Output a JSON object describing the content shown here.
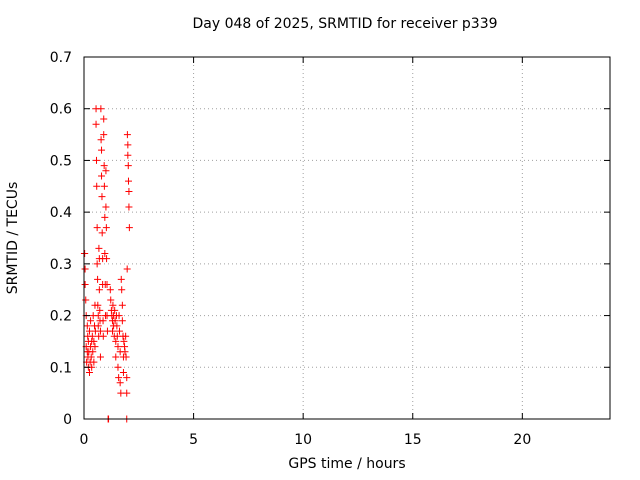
{
  "chart_data": {
    "type": "scatter",
    "title": "Day 048 of 2025, SRMTID for receiver p339",
    "xlabel": "GPS time / hours",
    "ylabel": "SRMTID / TECUs",
    "xlim": [
      0,
      24
    ],
    "ylim": [
      0,
      0.7
    ],
    "xticks": [
      0,
      5,
      10,
      15,
      20
    ],
    "yticks": [
      0,
      0.1,
      0.2,
      0.3,
      0.4,
      0.5,
      0.6,
      0.7
    ],
    "grid": true,
    "marker": "+",
    "color": "#ff0000",
    "series": [
      {
        "name": "SRMTID",
        "points": [
          [
            0.02,
            0.32
          ],
          [
            0.03,
            0.32
          ],
          [
            0.05,
            0.29
          ],
          [
            0.05,
            0.26
          ],
          [
            0.08,
            0.23
          ],
          [
            0.1,
            0.2
          ],
          [
            0.1,
            0.14
          ],
          [
            0.12,
            0.11
          ],
          [
            0.15,
            0.18
          ],
          [
            0.15,
            0.13
          ],
          [
            0.17,
            0.16
          ],
          [
            0.18,
            0.12
          ],
          [
            0.2,
            0.1
          ],
          [
            0.2,
            0.15
          ],
          [
            0.22,
            0.13
          ],
          [
            0.25,
            0.09
          ],
          [
            0.25,
            0.17
          ],
          [
            0.28,
            0.11
          ],
          [
            0.3,
            0.14
          ],
          [
            0.3,
            0.19
          ],
          [
            0.33,
            0.12
          ],
          [
            0.35,
            0.15
          ],
          [
            0.35,
            0.1
          ],
          [
            0.38,
            0.16
          ],
          [
            0.4,
            0.13
          ],
          [
            0.42,
            0.2
          ],
          [
            0.45,
            0.15
          ],
          [
            0.45,
            0.11
          ],
          [
            0.48,
            0.18
          ],
          [
            0.5,
            0.14
          ],
          [
            0.5,
            0.22
          ],
          [
            0.52,
            0.17
          ],
          [
            0.55,
            0.6
          ],
          [
            0.55,
            0.57
          ],
          [
            0.57,
            0.5
          ],
          [
            0.58,
            0.45
          ],
          [
            0.6,
            0.37
          ],
          [
            0.6,
            0.3
          ],
          [
            0.62,
            0.27
          ],
          [
            0.63,
            0.22
          ],
          [
            0.65,
            0.2
          ],
          [
            0.65,
            0.18
          ],
          [
            0.67,
            0.16
          ],
          [
            0.68,
            0.33
          ],
          [
            0.7,
            0.31
          ],
          [
            0.7,
            0.25
          ],
          [
            0.72,
            0.21
          ],
          [
            0.73,
            0.19
          ],
          [
            0.75,
            0.17
          ],
          [
            0.75,
            0.12
          ],
          [
            0.77,
            0.6
          ],
          [
            0.78,
            0.54
          ],
          [
            0.8,
            0.52
          ],
          [
            0.8,
            0.47
          ],
          [
            0.82,
            0.43
          ],
          [
            0.83,
            0.36
          ],
          [
            0.85,
            0.31
          ],
          [
            0.85,
            0.26
          ],
          [
            0.87,
            0.19
          ],
          [
            0.88,
            0.16
          ],
          [
            0.9,
            0.58
          ],
          [
            0.9,
            0.55
          ],
          [
            0.92,
            0.49
          ],
          [
            0.93,
            0.45
          ],
          [
            0.95,
            0.39
          ],
          [
            0.95,
            0.32
          ],
          [
            0.97,
            0.26
          ],
          [
            0.98,
            0.2
          ],
          [
            1.0,
            0.48
          ],
          [
            1.0,
            0.41
          ],
          [
            1.02,
            0.37
          ],
          [
            1.03,
            0.31
          ],
          [
            1.05,
            0.26
          ],
          [
            1.05,
            0.2
          ],
          [
            1.07,
            0.17
          ],
          [
            1.1,
            0.0
          ],
          [
            1.12,
            0.0
          ],
          [
            1.2,
            0.25
          ],
          [
            1.22,
            0.23
          ],
          [
            1.25,
            0.21
          ],
          [
            1.27,
            0.2
          ],
          [
            1.3,
            0.19
          ],
          [
            1.3,
            0.17
          ],
          [
            1.32,
            0.22
          ],
          [
            1.35,
            0.2
          ],
          [
            1.35,
            0.18
          ],
          [
            1.38,
            0.16
          ],
          [
            1.4,
            0.21
          ],
          [
            1.42,
            0.19
          ],
          [
            1.45,
            0.15
          ],
          [
            1.45,
            0.12
          ],
          [
            1.48,
            0.2
          ],
          [
            1.5,
            0.18
          ],
          [
            1.52,
            0.16
          ],
          [
            1.55,
            0.14
          ],
          [
            1.55,
            0.1
          ],
          [
            1.58,
            0.08
          ],
          [
            1.6,
            0.2
          ],
          [
            1.62,
            0.17
          ],
          [
            1.65,
            0.13
          ],
          [
            1.65,
            0.07
          ],
          [
            1.68,
            0.05
          ],
          [
            1.7,
            0.27
          ],
          [
            1.72,
            0.25
          ],
          [
            1.75,
            0.22
          ],
          [
            1.75,
            0.19
          ],
          [
            1.78,
            0.16
          ],
          [
            1.8,
            0.12
          ],
          [
            1.8,
            0.09
          ],
          [
            1.82,
            0.15
          ],
          [
            1.85,
            0.14
          ],
          [
            1.87,
            0.13
          ],
          [
            1.9,
            0.16
          ],
          [
            1.92,
            0.12
          ],
          [
            1.95,
            0.05
          ],
          [
            1.95,
            0.08
          ],
          [
            1.95,
            0.0
          ],
          [
            1.97,
            0.29
          ],
          [
            1.98,
            0.55
          ],
          [
            2.0,
            0.53
          ],
          [
            2.0,
            0.51
          ],
          [
            2.02,
            0.49
          ],
          [
            2.03,
            0.46
          ],
          [
            2.05,
            0.44
          ],
          [
            2.05,
            0.41
          ],
          [
            2.07,
            0.37
          ]
        ]
      }
    ]
  }
}
